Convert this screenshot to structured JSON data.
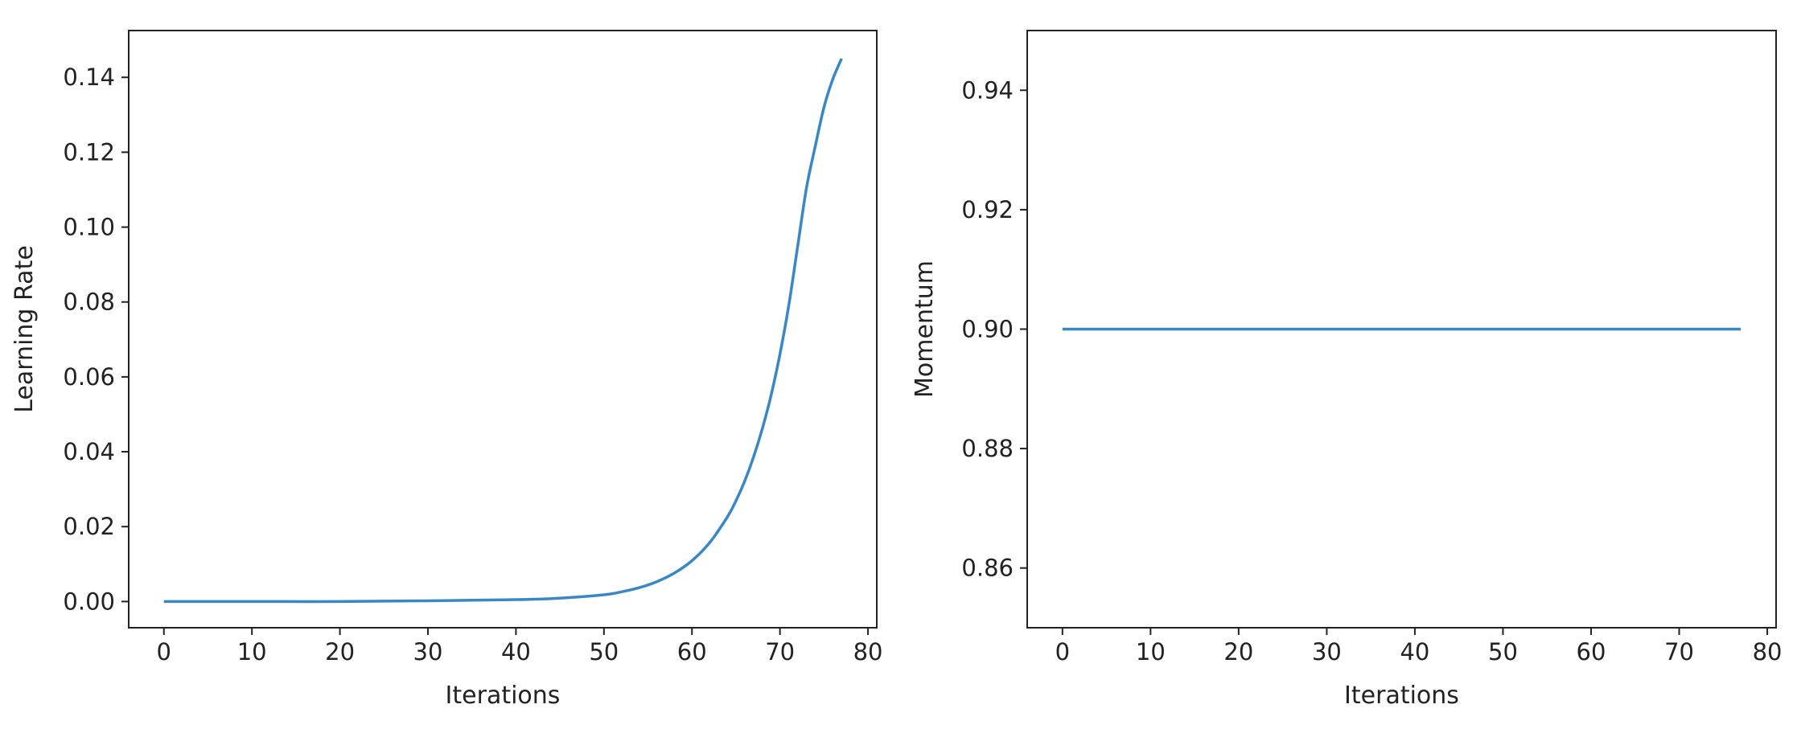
{
  "chart_data": [
    {
      "type": "line",
      "title": "",
      "xlabel": "Iterations",
      "ylabel": "Learning Rate",
      "xlim": [
        -4,
        81
      ],
      "ylim": [
        -0.007,
        0.1525
      ],
      "xticks": [
        0,
        10,
        20,
        30,
        40,
        50,
        60,
        70,
        80
      ],
      "xtick_labels": [
        "0",
        "10",
        "20",
        "30",
        "40",
        "50",
        "60",
        "70",
        "80"
      ],
      "yticks": [
        0.0,
        0.02,
        0.04,
        0.06,
        0.08,
        0.1,
        0.12,
        0.14
      ],
      "ytick_labels": [
        "0.00",
        "0.02",
        "0.04",
        "0.06",
        "0.08",
        "0.10",
        "0.12",
        "0.14"
      ],
      "grid": false,
      "series": [
        {
          "color": "#3a87c4",
          "x": [
            0,
            10,
            20,
            30,
            40,
            45,
            50,
            52,
            54,
            56,
            58,
            60,
            62,
            64,
            65,
            66,
            67,
            68,
            69,
            70,
            71,
            72,
            73,
            74,
            75,
            76,
            77
          ],
          "y": [
            0.0,
            0.0,
            0.0,
            0.0002,
            0.0005,
            0.0009,
            0.0018,
            0.0026,
            0.0037,
            0.0053,
            0.0076,
            0.0109,
            0.0157,
            0.0225,
            0.0269,
            0.0322,
            0.0386,
            0.0462,
            0.0552,
            0.0661,
            0.0791,
            0.0947,
            0.1103,
            0.1215,
            0.132,
            0.1395,
            0.145
          ]
        }
      ]
    },
    {
      "type": "line",
      "title": "",
      "xlabel": "Iterations",
      "ylabel": "Momentum",
      "xlim": [
        -4,
        81
      ],
      "ylim": [
        0.85,
        0.95
      ],
      "xticks": [
        0,
        10,
        20,
        30,
        40,
        50,
        60,
        70,
        80
      ],
      "xtick_labels": [
        "0",
        "10",
        "20",
        "30",
        "40",
        "50",
        "60",
        "70",
        "80"
      ],
      "yticks": [
        0.86,
        0.88,
        0.9,
        0.92,
        0.94
      ],
      "ytick_labels": [
        "0.86",
        "0.88",
        "0.90",
        "0.92",
        "0.94"
      ],
      "grid": false,
      "series": [
        {
          "color": "#3a87c4",
          "x": [
            0,
            77
          ],
          "y": [
            0.9,
            0.9
          ]
        }
      ]
    }
  ]
}
